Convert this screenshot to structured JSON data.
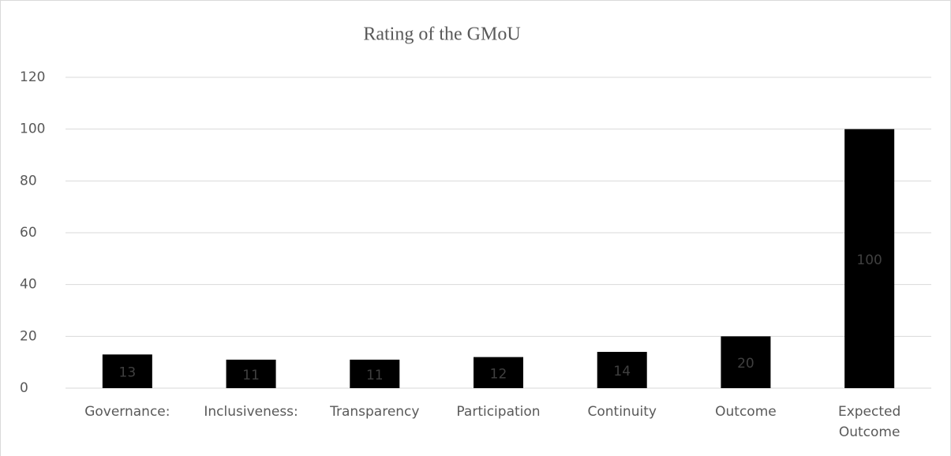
{
  "chart_data": {
    "type": "bar",
    "title": "Rating of the GMoU",
    "categories": [
      "Governance:",
      "Inclusiveness:",
      "Transparency",
      "Participation",
      "Continuity",
      "Outcome",
      "Expected Outcome"
    ],
    "values": [
      13,
      11,
      11,
      12,
      14,
      20,
      100
    ],
    "color": "#000000",
    "ylim": [
      0,
      120
    ],
    "yticks": [
      0,
      20,
      40,
      60,
      80,
      100,
      120
    ],
    "grid": true
  }
}
